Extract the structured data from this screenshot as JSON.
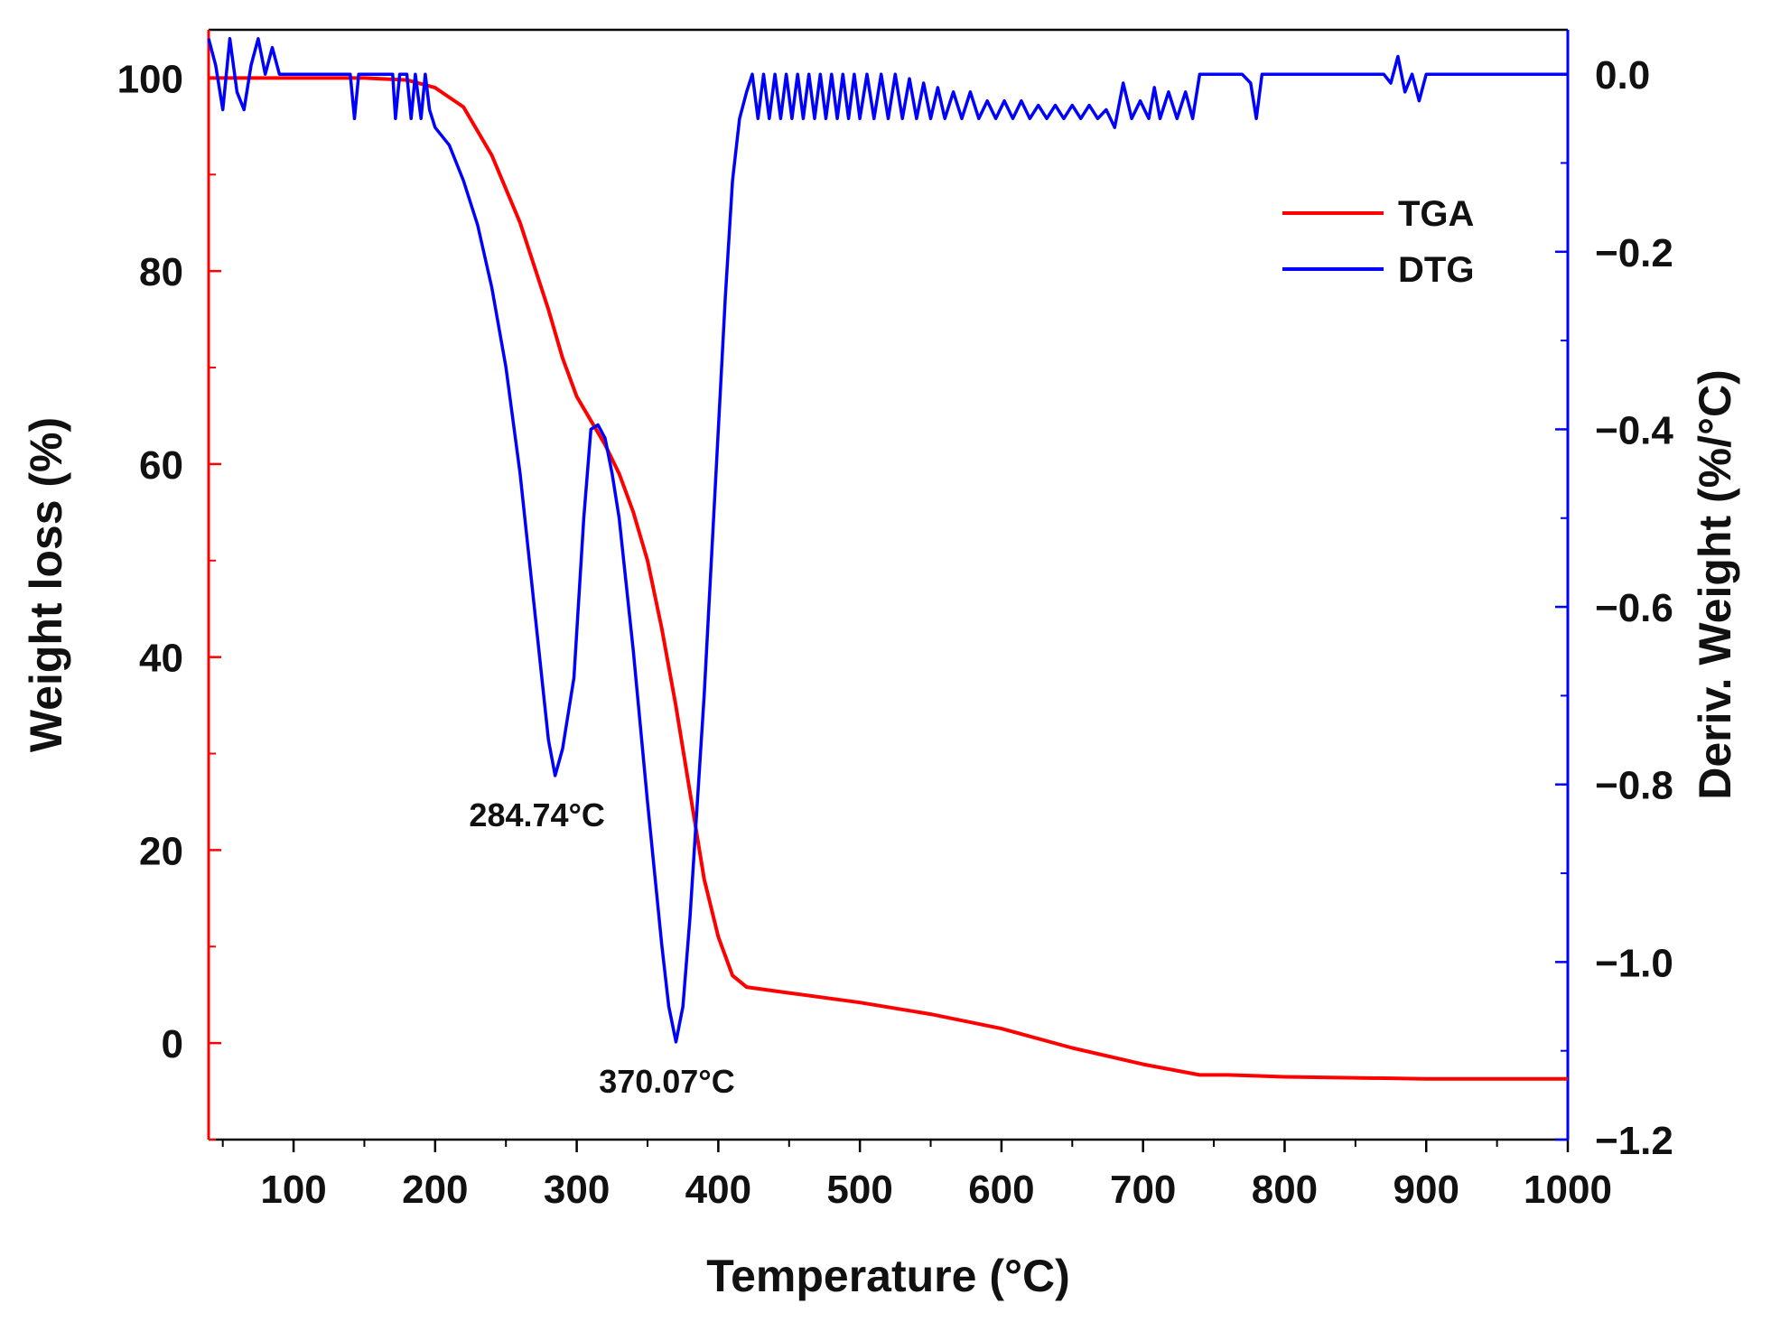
{
  "colors": {
    "tga": "#ff0000",
    "dtg": "#0000ff",
    "axis": "#000000"
  },
  "chart_data": {
    "type": "line",
    "title": "",
    "xlabel": "Temperature (°C)",
    "ylabel_left": "Weight loss (%)",
    "ylabel_right": "Deriv. Weight (%/°C)",
    "xlim": [
      40,
      1000
    ],
    "ylim_left": [
      -10,
      105
    ],
    "ylim_right": [
      -1.2,
      0.05
    ],
    "xticks": [
      100,
      200,
      300,
      400,
      500,
      600,
      700,
      800,
      900,
      1000
    ],
    "xtick_labels": [
      "100",
      "200",
      "300",
      "400",
      "500",
      "600",
      "700",
      "800",
      "900",
      "1000"
    ],
    "yticks_left": [
      0,
      20,
      40,
      60,
      80,
      100
    ],
    "ytick_labels_left": [
      "0",
      "20",
      "40",
      "60",
      "80",
      "100"
    ],
    "yticks_right": [
      0.0,
      -0.2,
      -0.4,
      -0.6,
      -0.8,
      -1.0,
      -1.2
    ],
    "ytick_labels_right": [
      "0.0",
      "−0.2",
      "−0.4",
      "−0.6",
      "−0.8",
      "−1.0",
      "−1.2"
    ],
    "legend_position": "top-right",
    "grid": false,
    "series": [
      {
        "name": "TGA",
        "axis": "left",
        "color": "#ff0000",
        "points": [
          [
            40,
            100
          ],
          [
            100,
            100
          ],
          [
            150,
            100
          ],
          [
            180,
            99.8
          ],
          [
            200,
            99
          ],
          [
            220,
            97
          ],
          [
            240,
            92
          ],
          [
            260,
            85
          ],
          [
            280,
            76
          ],
          [
            290,
            71
          ],
          [
            300,
            67
          ],
          [
            310,
            64.5
          ],
          [
            320,
            62
          ],
          [
            330,
            59
          ],
          [
            340,
            55
          ],
          [
            350,
            50
          ],
          [
            360,
            43
          ],
          [
            370,
            35
          ],
          [
            380,
            26
          ],
          [
            390,
            17
          ],
          [
            400,
            11
          ],
          [
            410,
            7
          ],
          [
            420,
            5.8
          ],
          [
            450,
            5.2
          ],
          [
            500,
            4.2
          ],
          [
            550,
            3.0
          ],
          [
            600,
            1.5
          ],
          [
            650,
            -0.5
          ],
          [
            700,
            -2.2
          ],
          [
            740,
            -3.3
          ],
          [
            760,
            -3.3
          ],
          [
            800,
            -3.5
          ],
          [
            900,
            -3.7
          ],
          [
            1000,
            -3.7
          ]
        ]
      },
      {
        "name": "DTG",
        "axis": "right",
        "color": "#0000ff",
        "points": [
          [
            40,
            0.04
          ],
          [
            45,
            0.01
          ],
          [
            50,
            -0.04
          ],
          [
            55,
            0.04
          ],
          [
            60,
            -0.02
          ],
          [
            65,
            -0.04
          ],
          [
            70,
            0.01
          ],
          [
            75,
            0.04
          ],
          [
            80,
            0.0
          ],
          [
            85,
            0.03
          ],
          [
            90,
            0.0
          ],
          [
            100,
            0.0
          ],
          [
            140,
            0.0
          ],
          [
            143,
            -0.05
          ],
          [
            146,
            0.0
          ],
          [
            170,
            0.0
          ],
          [
            172,
            -0.05
          ],
          [
            175,
            0.0
          ],
          [
            180,
            0.0
          ],
          [
            183,
            -0.05
          ],
          [
            186,
            0.0
          ],
          [
            190,
            -0.05
          ],
          [
            193,
            0.0
          ],
          [
            196,
            -0.04
          ],
          [
            200,
            -0.06
          ],
          [
            210,
            -0.08
          ],
          [
            220,
            -0.12
          ],
          [
            230,
            -0.17
          ],
          [
            240,
            -0.24
          ],
          [
            250,
            -0.33
          ],
          [
            260,
            -0.45
          ],
          [
            270,
            -0.6
          ],
          [
            280,
            -0.75
          ],
          [
            284.74,
            -0.79
          ],
          [
            290,
            -0.76
          ],
          [
            298,
            -0.68
          ],
          [
            305,
            -0.5
          ],
          [
            310,
            -0.4
          ],
          [
            315,
            -0.395
          ],
          [
            320,
            -0.41
          ],
          [
            325,
            -0.45
          ],
          [
            330,
            -0.5
          ],
          [
            340,
            -0.65
          ],
          [
            350,
            -0.82
          ],
          [
            360,
            -0.98
          ],
          [
            365,
            -1.05
          ],
          [
            370.07,
            -1.09
          ],
          [
            375,
            -1.05
          ],
          [
            380,
            -0.95
          ],
          [
            390,
            -0.7
          ],
          [
            400,
            -0.4
          ],
          [
            405,
            -0.25
          ],
          [
            410,
            -0.12
          ],
          [
            415,
            -0.05
          ],
          [
            420,
            -0.02
          ],
          [
            424,
            0.0
          ],
          [
            428,
            -0.05
          ],
          [
            432,
            0.0
          ],
          [
            436,
            -0.05
          ],
          [
            440,
            0.0
          ],
          [
            444,
            -0.05
          ],
          [
            448,
            0.0
          ],
          [
            452,
            -0.05
          ],
          [
            456,
            0.0
          ],
          [
            460,
            -0.05
          ],
          [
            464,
            0.0
          ],
          [
            468,
            -0.05
          ],
          [
            472,
            0.0
          ],
          [
            476,
            -0.05
          ],
          [
            480,
            0.0
          ],
          [
            484,
            -0.05
          ],
          [
            488,
            0.0
          ],
          [
            492,
            -0.05
          ],
          [
            496,
            0.0
          ],
          [
            500,
            -0.05
          ],
          [
            505,
            0.0
          ],
          [
            510,
            -0.05
          ],
          [
            515,
            0.0
          ],
          [
            520,
            -0.05
          ],
          [
            525,
            0.0
          ],
          [
            530,
            -0.05
          ],
          [
            535,
            -0.005
          ],
          [
            540,
            -0.05
          ],
          [
            545,
            -0.01
          ],
          [
            550,
            -0.05
          ],
          [
            555,
            -0.015
          ],
          [
            560,
            -0.05
          ],
          [
            566,
            -0.02
          ],
          [
            572,
            -0.05
          ],
          [
            578,
            -0.02
          ],
          [
            584,
            -0.05
          ],
          [
            590,
            -0.03
          ],
          [
            596,
            -0.05
          ],
          [
            602,
            -0.03
          ],
          [
            608,
            -0.05
          ],
          [
            614,
            -0.03
          ],
          [
            620,
            -0.05
          ],
          [
            626,
            -0.035
          ],
          [
            632,
            -0.05
          ],
          [
            638,
            -0.035
          ],
          [
            644,
            -0.05
          ],
          [
            650,
            -0.035
          ],
          [
            656,
            -0.05
          ],
          [
            662,
            -0.035
          ],
          [
            668,
            -0.05
          ],
          [
            674,
            -0.04
          ],
          [
            680,
            -0.06
          ],
          [
            686,
            -0.01
          ],
          [
            692,
            -0.05
          ],
          [
            698,
            -0.03
          ],
          [
            704,
            -0.05
          ],
          [
            708,
            -0.015
          ],
          [
            712,
            -0.05
          ],
          [
            718,
            -0.02
          ],
          [
            724,
            -0.05
          ],
          [
            730,
            -0.02
          ],
          [
            735,
            -0.05
          ],
          [
            740,
            0.0
          ],
          [
            770,
            0.0
          ],
          [
            776,
            -0.01
          ],
          [
            780,
            -0.05
          ],
          [
            784,
            0.0
          ],
          [
            800,
            0.0
          ],
          [
            870,
            0.0
          ],
          [
            875,
            -0.01
          ],
          [
            880,
            0.02
          ],
          [
            885,
            -0.02
          ],
          [
            890,
            0.0
          ],
          [
            895,
            -0.03
          ],
          [
            900,
            0.0
          ],
          [
            1000,
            0.0
          ]
        ]
      }
    ],
    "annotations": [
      {
        "text": "284.74°C",
        "x": 284.74,
        "y": -0.79,
        "axis": "right"
      },
      {
        "text": "370.07°C",
        "x": 370.07,
        "y": -1.09,
        "axis": "right"
      }
    ]
  }
}
